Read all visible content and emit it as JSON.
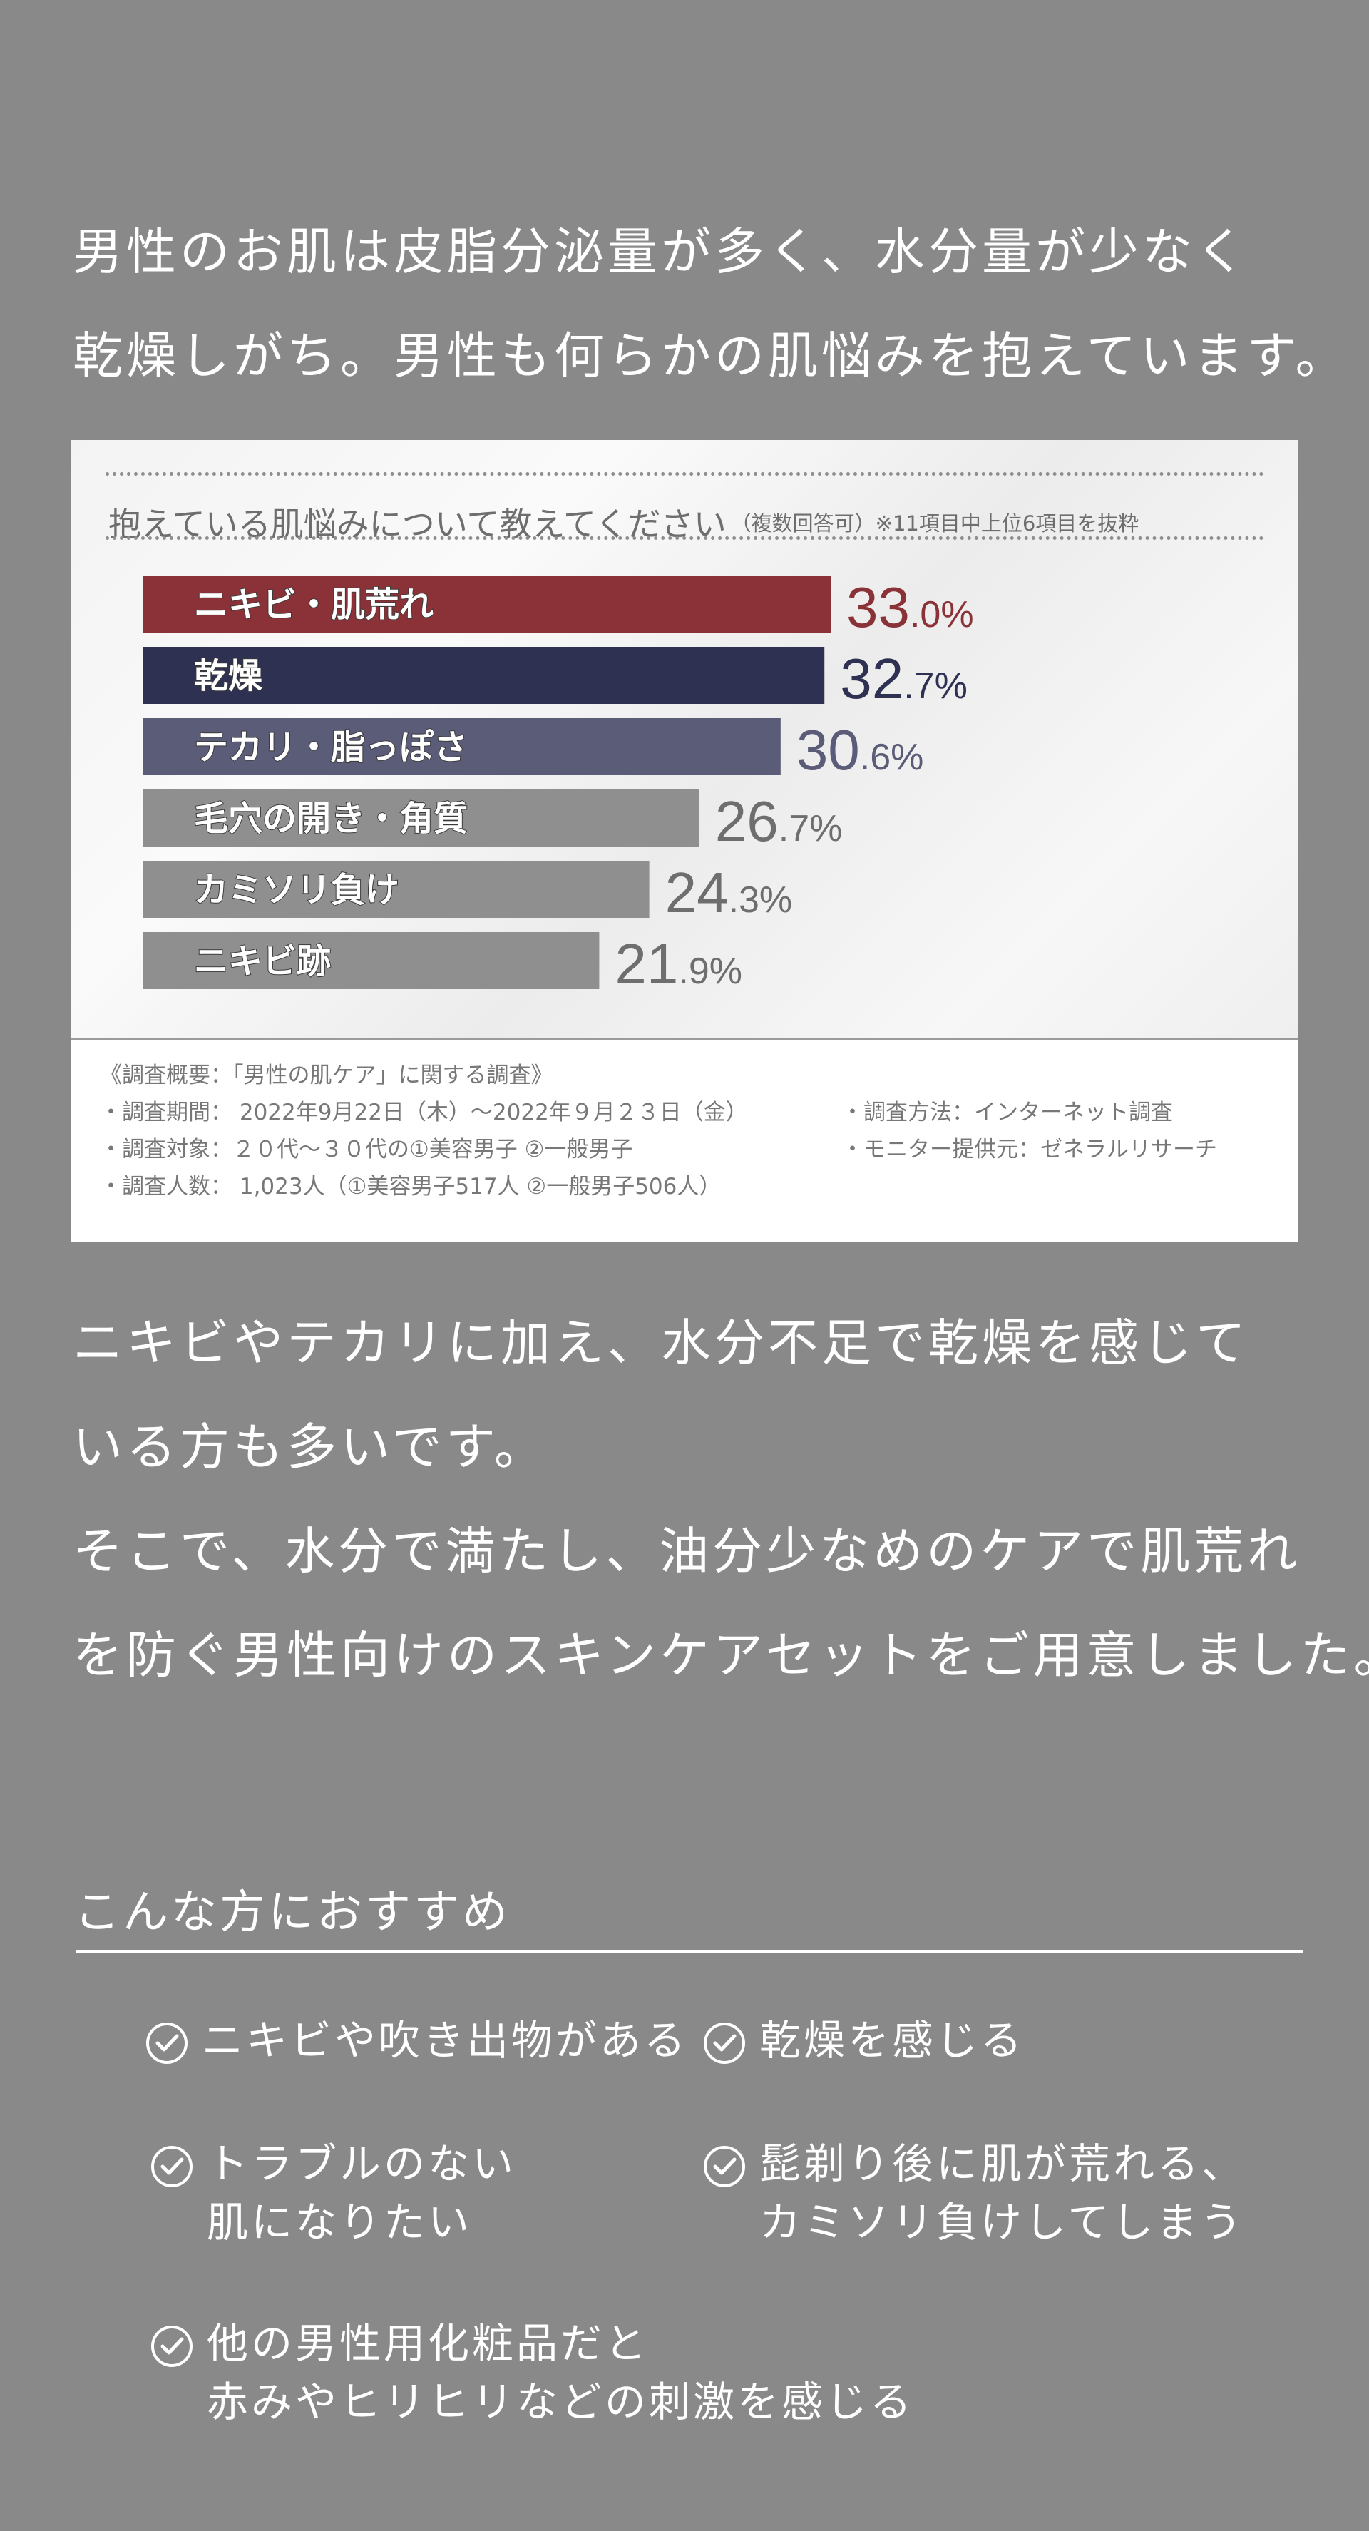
{
  "intro": {
    "line1": "男性のお肌は皮脂分泌量が多く、水分量が少なく",
    "line2": "乾燥しがち。男性も何らかの肌悩みを抱えています。"
  },
  "survey": {
    "question": "抱えている肌悩みについて教えてください",
    "question_note": "（複数回答可）※11項目中上位6項目を抜粋"
  },
  "chart_data": {
    "type": "bar",
    "orientation": "horizontal",
    "categories": [
      "ニキビ・肌荒れ",
      "乾燥",
      "テカリ・脂っぽさ",
      "毛穴の開き・角質",
      "カミソリ負け",
      "ニキビ跡"
    ],
    "values": [
      33.0,
      32.7,
      30.6,
      26.7,
      24.3,
      21.9
    ],
    "value_labels": [
      [
        "33",
        ".0%"
      ],
      [
        "32",
        ".7%"
      ],
      [
        "30",
        ".6%"
      ],
      [
        "26",
        ".7%"
      ],
      [
        "24",
        ".3%"
      ],
      [
        "21",
        ".9%"
      ]
    ],
    "unit": "%",
    "bar_colors": [
      "#8a3237",
      "#2f3152",
      "#5b5c78",
      "#8f8f8f",
      "#8f8f8f",
      "#8f8f8f"
    ],
    "label_colors": [
      "#8a3237",
      "#2f3152",
      "#5b5c78",
      "#6e6e6e",
      "#6e6e6e",
      "#6e6e6e"
    ],
    "xlim": [
      0,
      35
    ],
    "grid": false,
    "legend": "none"
  },
  "summary": {
    "title": "《調査概要：「男性の肌ケア」に関する調査》",
    "period": "・調査期間： 2022年9月22日（木）〜2022年９月２３日（金）",
    "method": "・調査方法：インターネット調査",
    "target": "・調査対象：２０代〜３０代の①美容男子 ②一般男子",
    "provider": "・モニター提供元：ゼネラルリサーチ",
    "count": "・調査人数： 1,023人（①美容男子517人 ②一般男子506人）"
  },
  "body": {
    "line1": "ニキビやテカリに加え、水分不足で乾燥を感じて",
    "line2": "いる方も多いです。",
    "line3": "そこで、水分で満たし、油分少なめのケアで肌荒れ",
    "line4": "を防ぐ男性向けのスキンケアセットをご用意しました。"
  },
  "recommend": {
    "title": "こんな方におすすめ",
    "items": [
      {
        "lines": [
          "ニキビや吹き出物がある"
        ]
      },
      {
        "lines": [
          "乾燥を感じる"
        ]
      },
      {
        "lines": [
          "トラブルのない",
          "肌になりたい"
        ]
      },
      {
        "lines": [
          "髭剃り後に肌が荒れる、",
          "カミソリ負けしてしまう"
        ]
      },
      {
        "lines": [
          "他の男性用化粧品だと",
          "赤みやヒリヒリなどの刺激を感じる"
        ]
      }
    ]
  }
}
